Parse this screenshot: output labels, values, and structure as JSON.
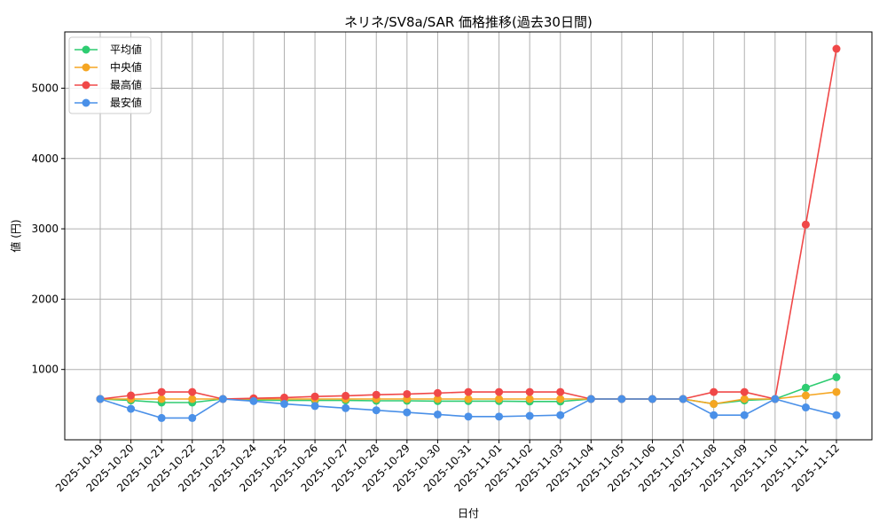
{
  "chart_data": {
    "type": "line",
    "title": "ネリネ/SV8a/SAR 価格推移(過去30日間)",
    "xlabel": "日付",
    "ylabel": "値 (円)",
    "ylim": [
      0,
      5800
    ],
    "yticks": [
      1000,
      2000,
      3000,
      4000,
      5000
    ],
    "grid": true,
    "legend_position": "top-left",
    "categories": [
      "2025-10-19",
      "2025-10-20",
      "2025-10-21",
      "2025-10-22",
      "2025-10-23",
      "2025-10-24",
      "2025-10-25",
      "2025-10-26",
      "2025-10-27",
      "2025-10-28",
      "2025-10-29",
      "2025-10-30",
      "2025-10-31",
      "2025-11-01",
      "2025-11-02",
      "2025-11-03",
      "2025-11-04",
      "2025-11-05",
      "2025-11-06",
      "2025-11-07",
      "2025-11-08",
      "2025-11-09",
      "2025-11-10",
      "2025-11-11",
      "2025-11-12"
    ],
    "series": [
      {
        "name": "平均値",
        "color": "#2ecc71",
        "values": [
          580,
          560,
          530,
          530,
          580,
          565,
          560,
          560,
          560,
          555,
          555,
          550,
          550,
          550,
          545,
          545,
          580,
          580,
          580,
          580,
          510,
          560,
          580,
          740,
          890
        ]
      },
      {
        "name": "中央値",
        "color": "#f5a623",
        "values": [
          580,
          580,
          580,
          580,
          580,
          580,
          580,
          580,
          580,
          580,
          580,
          580,
          580,
          580,
          580,
          580,
          580,
          580,
          580,
          580,
          510,
          580,
          580,
          630,
          680
        ]
      },
      {
        "name": "最高値",
        "color": "#f04848",
        "values": [
          580,
          630,
          680,
          680,
          580,
          590,
          600,
          615,
          625,
          640,
          650,
          665,
          680,
          680,
          680,
          680,
          580,
          580,
          580,
          580,
          680,
          680,
          580,
          3060,
          5560
        ]
      },
      {
        "name": "最安値",
        "color": "#4a90e8",
        "values": [
          580,
          440,
          310,
          310,
          580,
          550,
          510,
          480,
          450,
          420,
          390,
          360,
          330,
          330,
          340,
          350,
          580,
          580,
          580,
          580,
          350,
          350,
          580,
          460,
          350
        ]
      }
    ]
  }
}
